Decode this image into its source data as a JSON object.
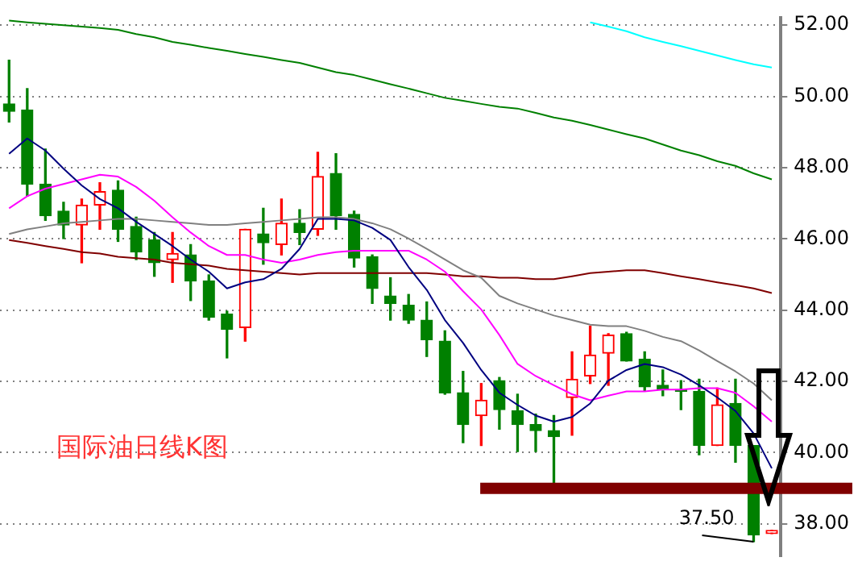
{
  "chart_data": {
    "type": "candlestick",
    "title": "国际油日线K图",
    "categories": [
      null,
      null,
      null,
      null,
      null,
      null,
      null,
      null,
      null,
      null,
      null,
      null,
      null,
      null,
      null,
      null,
      null,
      null,
      null,
      null,
      null,
      null,
      null,
      null,
      null,
      null,
      null,
      null,
      null,
      null,
      null,
      null,
      null,
      null,
      null,
      null,
      null,
      null,
      null,
      null,
      null,
      null,
      null
    ],
    "ohlc": [
      [
        49.79,
        51.02,
        49.28,
        49.58
      ],
      [
        49.62,
        50.22,
        47.2,
        47.54
      ],
      [
        47.54,
        48.52,
        46.52,
        46.65
      ],
      [
        46.78,
        47.03,
        46.01,
        46.39
      ],
      [
        46.39,
        47.12,
        45.33,
        46.95
      ],
      [
        46.95,
        47.58,
        46.27,
        47.33
      ],
      [
        47.37,
        47.63,
        45.93,
        46.27
      ],
      [
        46.35,
        46.61,
        45.42,
        45.63
      ],
      [
        45.97,
        46.18,
        44.95,
        45.33
      ],
      [
        45.42,
        46.18,
        44.78,
        45.59
      ],
      [
        45.55,
        45.84,
        44.27,
        44.82
      ],
      [
        44.82,
        44.99,
        43.72,
        43.8
      ],
      [
        43.89,
        43.97,
        42.66,
        43.46
      ],
      [
        43.51,
        46.27,
        43.13,
        46.27
      ],
      [
        46.14,
        46.86,
        45.29,
        45.89
      ],
      [
        45.84,
        47.12,
        45.55,
        46.44
      ],
      [
        46.44,
        46.82,
        45.84,
        46.18
      ],
      [
        46.27,
        48.43,
        46.1,
        47.75
      ],
      [
        47.84,
        48.39,
        46.27,
        46.65
      ],
      [
        46.69,
        46.78,
        45.21,
        45.46
      ],
      [
        45.5,
        45.55,
        44.19,
        44.61
      ],
      [
        44.4,
        44.91,
        43.72,
        44.19
      ],
      [
        44.14,
        44.44,
        43.63,
        43.72
      ],
      [
        43.72,
        44.23,
        42.7,
        43.17
      ],
      [
        43.13,
        43.42,
        41.64,
        41.68
      ],
      [
        41.68,
        42.28,
        40.28,
        40.79
      ],
      [
        41.04,
        41.94,
        40.2,
        41.47
      ],
      [
        42.02,
        42.11,
        40.66,
        41.21
      ],
      [
        41.17,
        41.64,
        40.03,
        40.79
      ],
      [
        40.79,
        41.08,
        40.03,
        40.62
      ],
      [
        40.62,
        41.04,
        39.13,
        40.45
      ],
      [
        41.55,
        42.83,
        40.49,
        42.06
      ],
      [
        42.15,
        43.55,
        41.94,
        42.74
      ],
      [
        42.79,
        43.34,
        41.89,
        43.3
      ],
      [
        43.34,
        43.38,
        42.57,
        42.57
      ],
      [
        42.62,
        42.83,
        41.72,
        41.85
      ],
      [
        41.89,
        42.32,
        41.6,
        41.77
      ],
      [
        41.77,
        42.02,
        41.21,
        41.72
      ],
      [
        41.72,
        42.06,
        39.94,
        40.2
      ],
      [
        40.2,
        41.81,
        40.2,
        41.34
      ],
      [
        41.38,
        42.06,
        39.73,
        40.2
      ],
      [
        40.2,
        40.2,
        37.5,
        37.69
      ],
      [
        37.73,
        37.82,
        37.73,
        37.82
      ]
    ],
    "colors": [
      "#008000",
      "#008000",
      "#008000",
      "#008000",
      "#ff0000",
      "#ff0000",
      "#008000",
      "#008000",
      "#008000",
      "#ff0000",
      "#008000",
      "#008000",
      "#008000",
      "#ff0000",
      "#008000",
      "#ff0000",
      "#008000",
      "#ff0000",
      "#008000",
      "#008000",
      "#008000",
      "#008000",
      "#008000",
      "#008000",
      "#008000",
      "#008000",
      "#ff0000",
      "#008000",
      "#008000",
      "#008000",
      "#008000",
      "#ff0000",
      "#ff0000",
      "#ff0000",
      "#008000",
      "#008000",
      "#008000",
      "#008000",
      "#008000",
      "#ff0000",
      "#008000",
      "#008000",
      "#ff0000"
    ],
    "series": [
      {
        "type": "line",
        "color": "#000080",
        "values": [
          48.39,
          48.82,
          48.48,
          47.97,
          47.5,
          47.12,
          46.86,
          46.48,
          46.14,
          45.8,
          45.42,
          45.08,
          44.61,
          44.78,
          44.87,
          45.16,
          45.72,
          46.56,
          46.56,
          46.52,
          46.31,
          45.97,
          45.21,
          44.57,
          43.72,
          43.08,
          42.32,
          41.68,
          41.34,
          41.04,
          40.87,
          41.0,
          41.38,
          42.02,
          42.32,
          42.49,
          42.4,
          42.19,
          41.89,
          41.55,
          41.17,
          40.54,
          39.56
        ]
      },
      {
        "type": "line",
        "color": "#ff00ff",
        "values": [
          46.86,
          47.2,
          47.41,
          47.54,
          47.67,
          47.8,
          47.75,
          47.46,
          47.07,
          46.61,
          46.18,
          45.8,
          45.55,
          45.55,
          45.42,
          45.33,
          45.42,
          45.55,
          45.63,
          45.67,
          45.67,
          45.67,
          45.67,
          45.42,
          45.08,
          44.53,
          44.02,
          43.3,
          42.49,
          42.15,
          41.89,
          41.64,
          41.47,
          41.6,
          41.72,
          41.72,
          41.77,
          41.77,
          41.81,
          41.81,
          41.68,
          41.3,
          40.87
        ]
      },
      {
        "type": "line",
        "color": "#808080",
        "values": [
          46.14,
          46.27,
          46.35,
          46.44,
          46.48,
          46.52,
          46.56,
          46.56,
          46.52,
          46.48,
          46.44,
          46.39,
          46.39,
          46.44,
          46.48,
          46.52,
          46.56,
          46.61,
          46.61,
          46.56,
          46.44,
          46.27,
          46.01,
          45.72,
          45.42,
          45.12,
          44.91,
          44.4,
          44.19,
          44.02,
          43.85,
          43.72,
          43.59,
          43.55,
          43.55,
          43.42,
          43.25,
          43.13,
          42.87,
          42.57,
          42.28,
          41.94,
          41.47
        ]
      },
      {
        "type": "line",
        "color": "#800000",
        "values": [
          45.97,
          45.89,
          45.8,
          45.72,
          45.63,
          45.59,
          45.5,
          45.46,
          45.42,
          45.33,
          45.29,
          45.25,
          45.16,
          45.12,
          45.08,
          45.04,
          45.0,
          45.04,
          45.04,
          45.04,
          45.04,
          45.04,
          45.04,
          45.04,
          45.0,
          44.95,
          44.95,
          44.91,
          44.91,
          44.87,
          44.87,
          44.95,
          45.04,
          45.08,
          45.12,
          45.12,
          45.04,
          44.95,
          44.87,
          44.78,
          44.7,
          44.61,
          44.48
        ]
      },
      {
        "type": "line",
        "color": "#008000",
        "values": [
          52.13,
          52.08,
          52.04,
          52.0,
          51.96,
          51.92,
          51.87,
          51.75,
          51.66,
          51.53,
          51.45,
          51.36,
          51.28,
          51.19,
          51.11,
          51.02,
          50.94,
          50.81,
          50.68,
          50.6,
          50.47,
          50.34,
          50.22,
          50.09,
          49.96,
          49.88,
          49.79,
          49.71,
          49.66,
          49.54,
          49.41,
          49.32,
          49.2,
          49.07,
          48.94,
          48.82,
          48.65,
          48.48,
          48.35,
          48.18,
          48.05,
          47.84,
          47.67
        ]
      },
      {
        "type": "line",
        "color": "#00ffff",
        "values": [
          null,
          null,
          null,
          null,
          null,
          null,
          null,
          null,
          null,
          null,
          null,
          null,
          null,
          null,
          null,
          null,
          null,
          null,
          null,
          null,
          null,
          null,
          null,
          null,
          null,
          null,
          null,
          null,
          null,
          null,
          null,
          null,
          52.08,
          51.96,
          51.83,
          51.66,
          51.53,
          51.41,
          51.28,
          51.15,
          51.02,
          50.9,
          50.81
        ]
      }
    ],
    "ylim": [
      37.1,
      52.2
    ],
    "yticks": [
      {
        "value": 38,
        "label": "38.00"
      },
      {
        "value": 40,
        "label": "40.00"
      },
      {
        "value": 42,
        "label": "42.00"
      },
      {
        "value": 44,
        "label": "44.00"
      },
      {
        "value": 46,
        "label": "46.00"
      },
      {
        "value": 48,
        "label": "48.00"
      },
      {
        "value": 50,
        "label": "50.00"
      },
      {
        "value": 52,
        "label": "52.00"
      }
    ],
    "ref_lines": [
      {
        "axis": "y",
        "value": 39,
        "color": "#800000"
      }
    ],
    "annotations": [
      "37.50"
    ],
    "grid": "y",
    "legend": false,
    "tick_labels": "y"
  }
}
